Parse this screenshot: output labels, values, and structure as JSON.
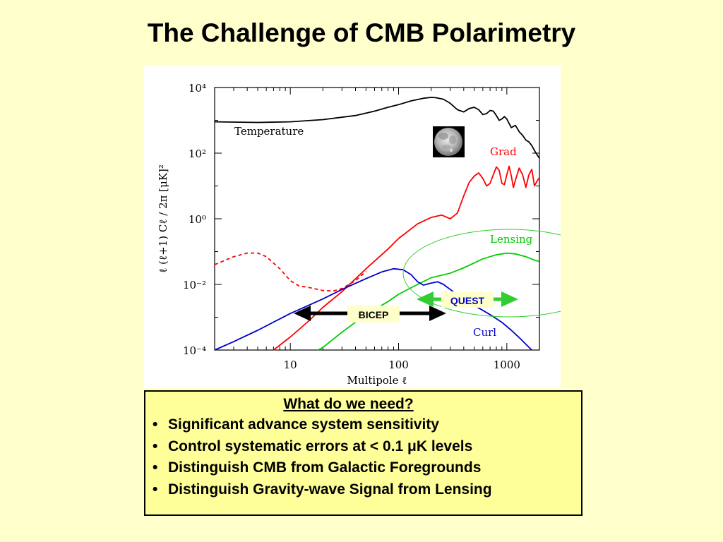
{
  "slide": {
    "title": "The Challenge of CMB Polarimetry"
  },
  "chart_data": {
    "type": "line",
    "xscale": "log",
    "yscale": "log",
    "xlim": [
      2,
      2000
    ],
    "ylim": [
      0.0001,
      10000
    ],
    "xlabel": "Multipole ℓ",
    "ylabel": "ℓ (ℓ+1) Cℓ / 2π   [μK]²",
    "x_ticks": [
      "10",
      "100",
      "1000"
    ],
    "y_ticks": [
      "10⁻⁴",
      "10⁻²",
      "10⁰",
      "10²",
      "10⁴"
    ],
    "series": [
      {
        "name": "Temperature",
        "color": "#000000",
        "style": "solid",
        "x": [
          2,
          5,
          10,
          20,
          40,
          60,
          80,
          100,
          130,
          170,
          200,
          220,
          260,
          300,
          350,
          400,
          450,
          500,
          550,
          600,
          650,
          700,
          750,
          800,
          850,
          900,
          950,
          1000,
          1050,
          1100,
          1150,
          1200,
          1300,
          1400,
          1500,
          1600,
          1700,
          1800,
          1900,
          2000
        ],
        "y": [
          900,
          860,
          900,
          1050,
          1400,
          1900,
          2500,
          3000,
          3900,
          4700,
          5000,
          4900,
          4400,
          3300,
          2100,
          1800,
          2300,
          2500,
          2100,
          1500,
          1600,
          2000,
          1900,
          1400,
          1000,
          1100,
          1300,
          1100,
          800,
          600,
          650,
          700,
          450,
          350,
          250,
          220,
          170,
          120,
          90,
          70
        ]
      },
      {
        "name": "Grad",
        "color": "#ff0000",
        "style": "solid",
        "x": [
          7,
          10,
          15,
          20,
          30,
          50,
          80,
          100,
          150,
          200,
          250,
          300,
          350,
          400,
          450,
          500,
          550,
          600,
          650,
          700,
          750,
          800,
          850,
          900,
          950,
          1000,
          1050,
          1100,
          1150,
          1200,
          1300,
          1400,
          1500,
          1600,
          1700,
          1800,
          1900,
          2000
        ],
        "y": [
          0.0001,
          0.00025,
          0.0008,
          0.002,
          0.006,
          0.03,
          0.12,
          0.25,
          0.7,
          1.1,
          1.3,
          1.0,
          1.5,
          5,
          13,
          20,
          25,
          17,
          10,
          12,
          22,
          38,
          30,
          12,
          11,
          22,
          40,
          20,
          9,
          15,
          35,
          22,
          9,
          22,
          32,
          10,
          14,
          18
        ]
      },
      {
        "name": "",
        "color": "#ff0000",
        "style": "dashed",
        "x": [
          2,
          3,
          4,
          5,
          6,
          8,
          10,
          12,
          15,
          20,
          25,
          30,
          40,
          50
        ],
        "y": [
          0.04,
          0.07,
          0.09,
          0.09,
          0.07,
          0.03,
          0.013,
          0.009,
          0.008,
          0.0065,
          0.0063,
          0.0075,
          0.013,
          0.025
        ]
      },
      {
        "name": "Lensing",
        "color": "#00cc00",
        "style": "solid",
        "x": [
          18,
          20,
          30,
          50,
          80,
          100,
          150,
          200,
          300,
          400,
          500,
          600,
          700,
          800,
          900,
          1000,
          1200,
          1500,
          1800,
          2000
        ],
        "y": [
          0.0001,
          0.00012,
          0.00035,
          0.0012,
          0.003,
          0.005,
          0.01,
          0.016,
          0.022,
          0.032,
          0.045,
          0.06,
          0.07,
          0.08,
          0.085,
          0.09,
          0.085,
          0.07,
          0.055,
          0.05
        ]
      },
      {
        "name": "Curl",
        "color": "#0000cc",
        "style": "solid",
        "x": [
          2,
          3,
          5,
          10,
          20,
          30,
          50,
          70,
          90,
          110,
          130,
          150,
          170,
          200,
          230,
          260,
          300,
          400,
          500,
          700,
          900,
          1100,
          1300,
          1500,
          1700
        ],
        "y": [
          0.0001,
          0.00018,
          0.0004,
          0.0013,
          0.0036,
          0.007,
          0.015,
          0.024,
          0.03,
          0.028,
          0.02,
          0.012,
          0.0095,
          0.011,
          0.012,
          0.01,
          0.007,
          0.0035,
          0.0023,
          0.0012,
          0.0007,
          0.0004,
          0.00024,
          0.00015,
          0.0001
        ]
      }
    ],
    "annotations": [
      {
        "text": "BICEP",
        "x_range": [
          12,
          300
        ],
        "arrow_color": "#000000"
      },
      {
        "text": "QUEST",
        "x_range": [
          200,
          1000
        ],
        "arrow_color": "#33cc33"
      }
    ],
    "grid": false,
    "legend": "inline labels"
  },
  "needs": {
    "heading": "What do we need?",
    "bullet": "•",
    "items": [
      "Significant advance system sensitivity",
      "Control systematic errors at < 0.1 μK levels",
      "Distinguish CMB from Galactic Foregrounds",
      "Distinguish Gravity-wave Signal from Lensing"
    ]
  },
  "icons": {
    "moon": "moon-photo-icon"
  }
}
